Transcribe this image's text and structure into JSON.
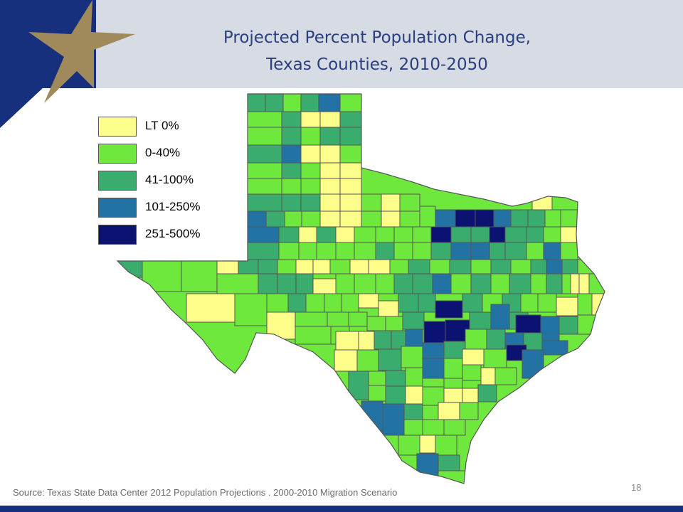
{
  "title": {
    "line1": "Projected Percent Population Change,",
    "line2": "Texas Counties, 2010-2050"
  },
  "legend": {
    "items": [
      {
        "label": "LT 0%",
        "color": "#fdfd8a"
      },
      {
        "label": "0-40%",
        "color": "#6ee83c"
      },
      {
        "label": "41-100%",
        "color": "#3aac6e"
      },
      {
        "label": "101-250%",
        "color": "#2272a3"
      },
      {
        "label": "251-500%",
        "color": "#0c1272"
      }
    ]
  },
  "source": "Source: Texas State Data Center 2012 Population Projections . 2000-2010 Migration Scenario",
  "page_number": "18",
  "colors": {
    "banner": "#d6dbe4",
    "title": "#2b3f7e",
    "brand_blue": "#17307e",
    "star_gold": "#a0895a",
    "county_border": "#555555"
  }
}
